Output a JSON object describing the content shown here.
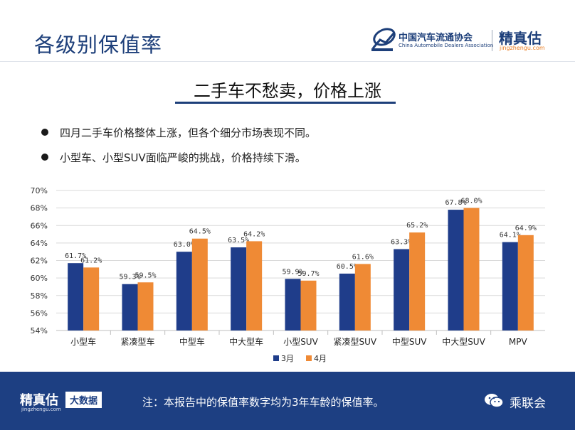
{
  "header": {
    "title": "各级别保值率",
    "logo_cn": "中国汽车流通协会",
    "logo_en": "China Automobile Dealers Association",
    "logo_brand": "精真估",
    "logo_url": "jingzhengu.com"
  },
  "headline": "二手车不愁卖，价格上涨",
  "bullets": [
    "四月二手车价格整体上涨，但各个细分市场表现不同。",
    "小型车、小型SUV面临严峻的挑战，价格持续下滑。"
  ],
  "chart_data": {
    "type": "bar",
    "categories": [
      "小型车",
      "紧凑型车",
      "中型车",
      "中大型车",
      "小型SUV",
      "紧凑型SUV",
      "中型SUV",
      "中大型SUV",
      "MPV"
    ],
    "series": [
      {
        "name": "3月",
        "color": "#1f3d8a",
        "values": [
          61.7,
          59.3,
          63.0,
          63.5,
          59.9,
          60.5,
          63.3,
          67.8,
          64.1
        ]
      },
      {
        "name": "4月",
        "color": "#ef8a35",
        "values": [
          61.2,
          59.5,
          64.5,
          64.2,
          59.7,
          61.6,
          65.2,
          68.0,
          64.9
        ]
      }
    ],
    "value_labels": [
      [
        "61.7%",
        "59.3%",
        "63.0%",
        "63.5%",
        "59.9%",
        "60.5%",
        "63.3%",
        "67.8%",
        "64.1%"
      ],
      [
        "61.2%",
        "59.5%",
        "64.5%",
        "64.2%",
        "59.7%",
        "61.6%",
        "65.2%",
        "68.0%",
        "64.9%"
      ]
    ],
    "ylim": [
      54,
      70
    ],
    "yticks": [
      54,
      56,
      58,
      60,
      62,
      64,
      66,
      68,
      70
    ],
    "ytick_labels": [
      "54%",
      "56%",
      "58%",
      "60%",
      "62%",
      "64%",
      "66%",
      "68%",
      "70%"
    ],
    "grid": true,
    "legend": "bottom-center",
    "title": "",
    "xlabel": "",
    "ylabel": ""
  },
  "footer": {
    "logo": "精真估",
    "url": "jingzhengu.com",
    "tag": "大数据",
    "note": "注：本报告中的保值率数字均为3年车龄的保值率。",
    "brand": "乘联会"
  },
  "colors": {
    "primary": "#1d3f7a",
    "accent": "#ef8a35",
    "footer_bg": "#1d3f82"
  }
}
